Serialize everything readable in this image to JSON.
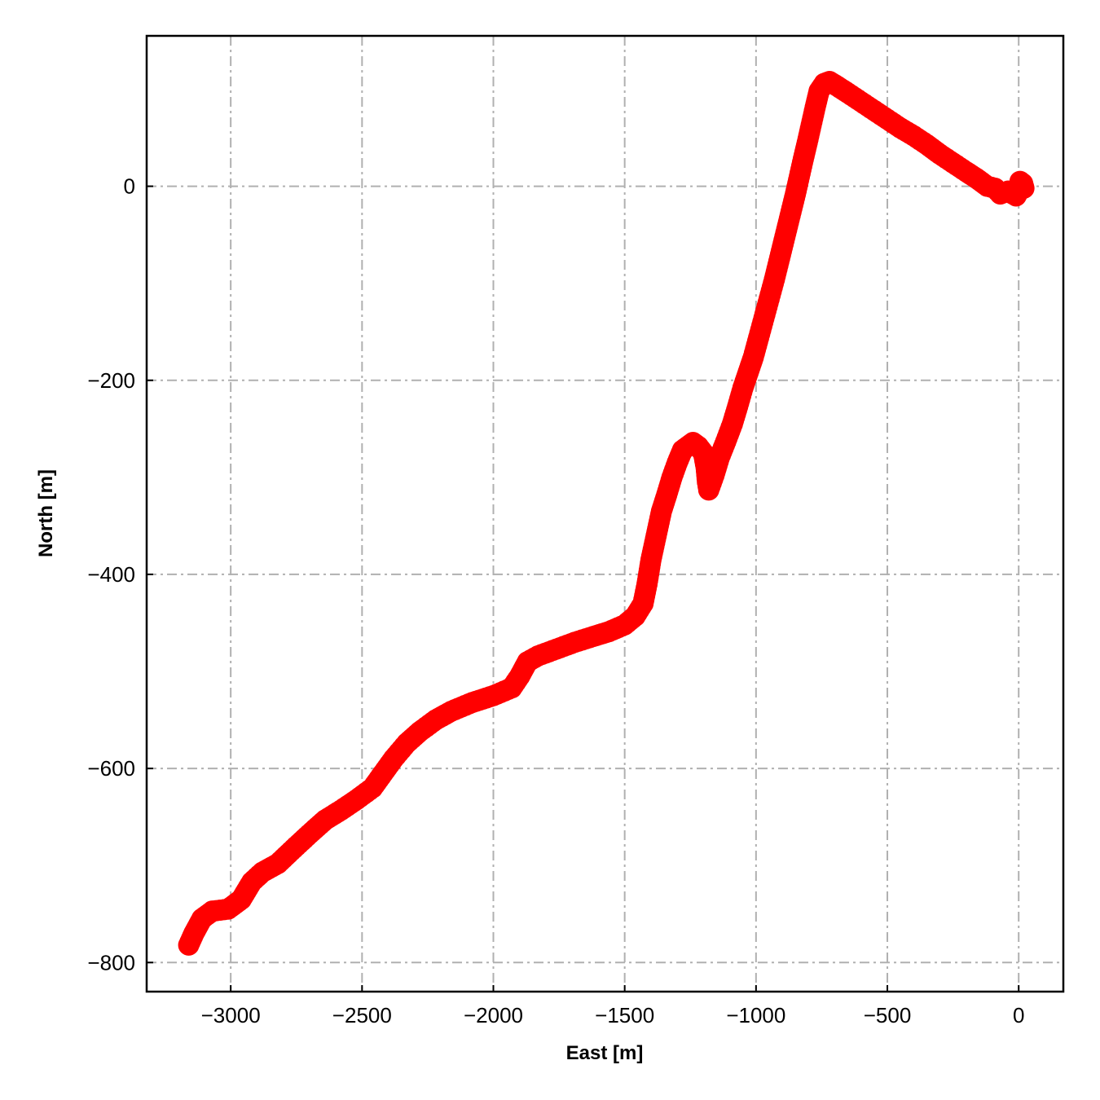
{
  "chart_data": {
    "type": "scatter",
    "title": "",
    "xlabel": "East [m]",
    "ylabel": "North [m]",
    "xlim": [
      -3320,
      170
    ],
    "ylim": [
      -830,
      155
    ],
    "xticks": [
      -3000,
      -2500,
      -2000,
      -1500,
      -1000,
      -500,
      0
    ],
    "yticks": [
      0,
      -200,
      -400,
      -600,
      -800
    ],
    "xtick_labels": [
      "−3000",
      "−2500",
      "−2000",
      "−1500",
      "−1000",
      "−500",
      "0"
    ],
    "ytick_labels": [
      "0",
      "−200",
      "−400",
      "−600",
      "−800"
    ],
    "grid": true,
    "marker_color": "#ff0000",
    "grid_color": "#b0b0b0",
    "series": [
      {
        "points": [
          [
            -3160,
            -782
          ],
          [
            -3140,
            -770
          ],
          [
            -3110,
            -755
          ],
          [
            -3070,
            -747
          ],
          [
            -3010,
            -745
          ],
          [
            -2960,
            -735
          ],
          [
            -2920,
            -717
          ],
          [
            -2880,
            -707
          ],
          [
            -2820,
            -698
          ],
          [
            -2750,
            -680
          ],
          [
            -2690,
            -665
          ],
          [
            -2640,
            -653
          ],
          [
            -2580,
            -643
          ],
          [
            -2520,
            -632
          ],
          [
            -2460,
            -620
          ],
          [
            -2420,
            -605
          ],
          [
            -2380,
            -590
          ],
          [
            -2330,
            -574
          ],
          [
            -2280,
            -562
          ],
          [
            -2220,
            -550
          ],
          [
            -2160,
            -541
          ],
          [
            -2080,
            -532
          ],
          [
            -2000,
            -525
          ],
          [
            -1930,
            -517
          ],
          [
            -1900,
            -505
          ],
          [
            -1870,
            -490
          ],
          [
            -1830,
            -484
          ],
          [
            -1760,
            -477
          ],
          [
            -1690,
            -470
          ],
          [
            -1620,
            -464
          ],
          [
            -1560,
            -459
          ],
          [
            -1500,
            -452
          ],
          [
            -1460,
            -443
          ],
          [
            -1430,
            -430
          ],
          [
            -1415,
            -410
          ],
          [
            -1400,
            -385
          ],
          [
            -1380,
            -360
          ],
          [
            -1360,
            -335
          ],
          [
            -1340,
            -318
          ],
          [
            -1320,
            -300
          ],
          [
            -1300,
            -285
          ],
          [
            -1280,
            -272
          ],
          [
            -1260,
            -268
          ],
          [
            -1240,
            -264
          ],
          [
            -1220,
            -268
          ],
          [
            -1200,
            -275
          ],
          [
            -1190,
            -290
          ],
          [
            -1185,
            -305
          ],
          [
            -1180,
            -313
          ],
          [
            -1160,
            -298
          ],
          [
            -1140,
            -280
          ],
          [
            -1115,
            -263
          ],
          [
            -1090,
            -245
          ],
          [
            -1070,
            -227
          ],
          [
            -1050,
            -208
          ],
          [
            -1030,
            -192
          ],
          [
            -1010,
            -176
          ],
          [
            -990,
            -156
          ],
          [
            -970,
            -136
          ],
          [
            -950,
            -116
          ],
          [
            -930,
            -96
          ],
          [
            -910,
            -74
          ],
          [
            -890,
            -52
          ],
          [
            -870,
            -30
          ],
          [
            -850,
            -8
          ],
          [
            -835,
            10
          ],
          [
            -820,
            28
          ],
          [
            -805,
            45
          ],
          [
            -790,
            63
          ],
          [
            -775,
            81
          ],
          [
            -760,
            98
          ],
          [
            -740,
            106
          ],
          [
            -720,
            108
          ],
          [
            -690,
            103
          ],
          [
            -650,
            96
          ],
          [
            -600,
            87
          ],
          [
            -550,
            78
          ],
          [
            -500,
            69
          ],
          [
            -450,
            60
          ],
          [
            -400,
            52
          ],
          [
            -350,
            43
          ],
          [
            -300,
            33
          ],
          [
            -250,
            24
          ],
          [
            -200,
            15
          ],
          [
            -160,
            8
          ],
          [
            -120,
            0
          ],
          [
            -90,
            -2
          ],
          [
            -70,
            -8
          ],
          [
            -40,
            -5
          ],
          [
            -10,
            -10
          ],
          [
            0,
            -5
          ],
          [
            5,
            5
          ],
          [
            10,
            0
          ],
          [
            15,
            3
          ],
          [
            20,
            -2
          ]
        ]
      }
    ]
  }
}
